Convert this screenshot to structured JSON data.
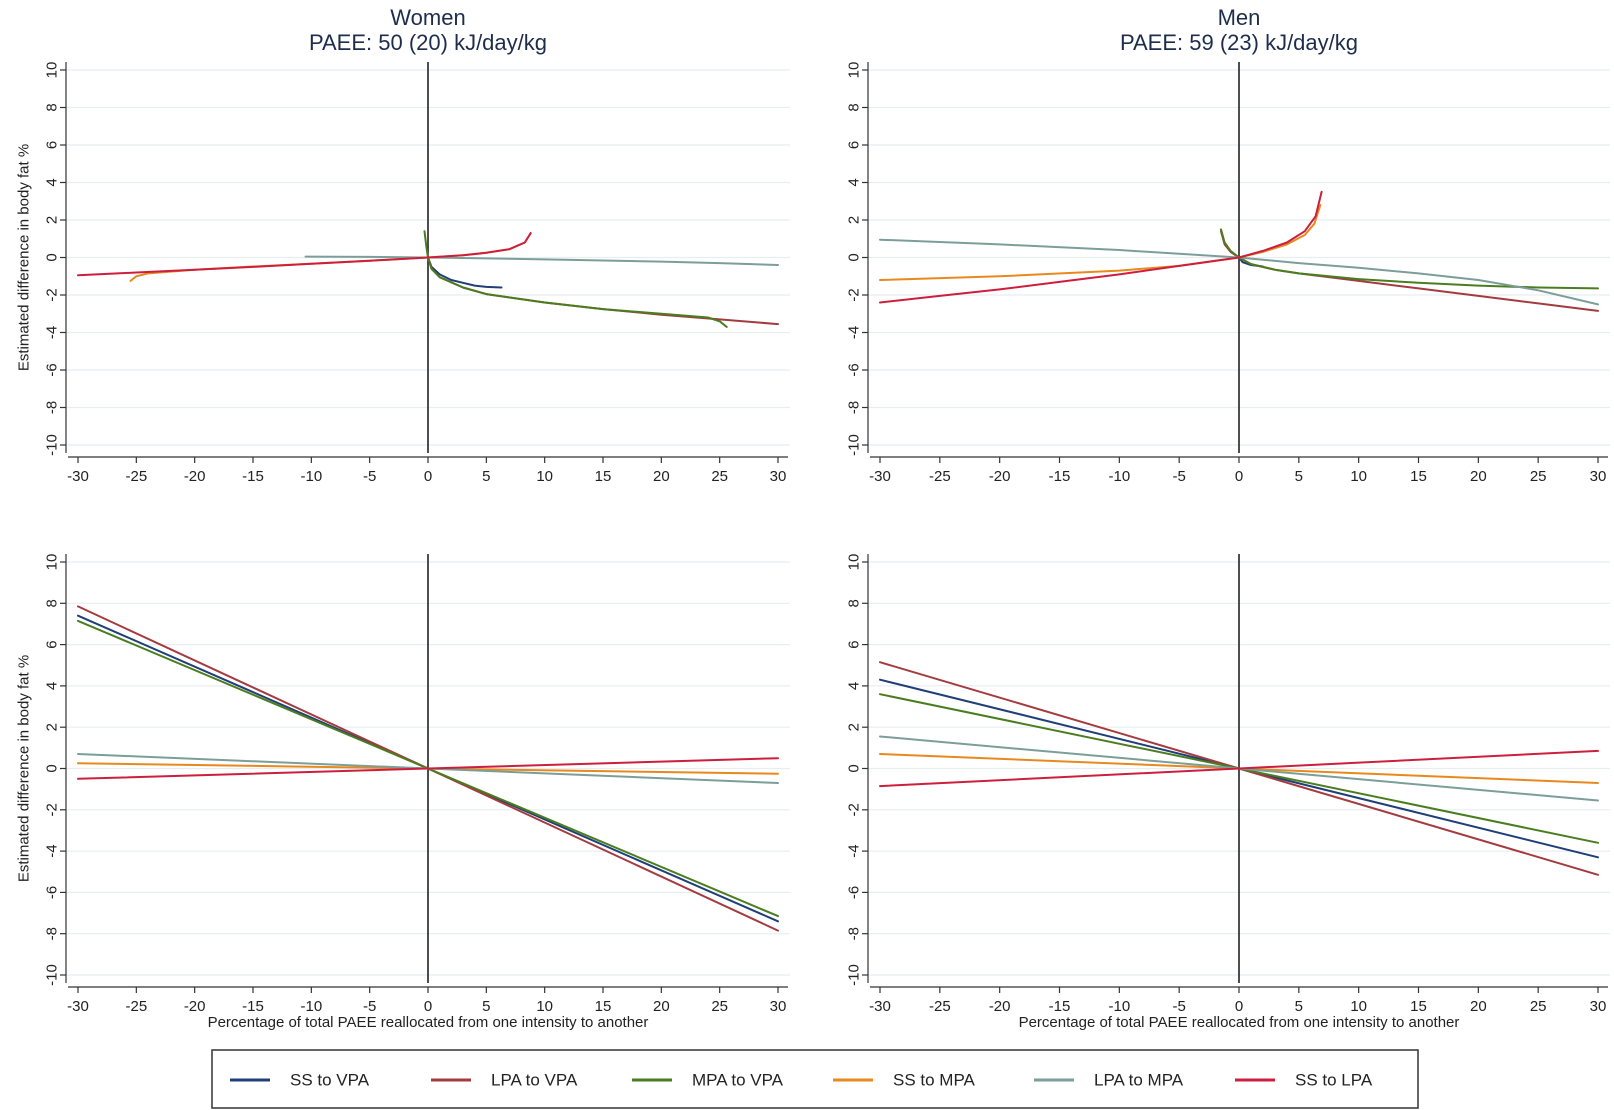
{
  "chart_data": [
    {
      "type": "line",
      "title": [
        "Women",
        "PAEE: 50 (20) kJ/day/kg"
      ],
      "ylabel": "Estimated difference in body fat %",
      "xlabel": "",
      "xlim": [
        -30,
        30
      ],
      "ylim": [
        -10,
        10
      ],
      "xticks": [
        "-30",
        "-25",
        "-20",
        "-15",
        "-10",
        "-5",
        "0",
        "5",
        "10",
        "15",
        "20",
        "25",
        "30"
      ],
      "yticks": [
        "-10",
        "-8",
        "-6",
        "-4",
        "-2",
        "0",
        "2",
        "4",
        "6",
        "8",
        "10"
      ],
      "series": [
        {
          "name": "SS to VPA",
          "color": "#1f3f78",
          "points": [
            [
              0,
              0
            ],
            [
              0.3,
              -0.5
            ],
            [
              1,
              -0.9
            ],
            [
              2,
              -1.2
            ],
            [
              3,
              -1.35
            ],
            [
              4,
              -1.5
            ],
            [
              5,
              -1.57
            ],
            [
              6.3,
              -1.6
            ]
          ]
        },
        {
          "name": "LPA to VPA",
          "color": "#a43b3f",
          "points": [
            [
              0,
              0
            ],
            [
              0.3,
              -0.6
            ],
            [
              1,
              -1.05
            ],
            [
              3,
              -1.6
            ],
            [
              5,
              -1.95
            ],
            [
              10,
              -2.4
            ],
            [
              15,
              -2.75
            ],
            [
              20,
              -3.05
            ],
            [
              25,
              -3.3
            ],
            [
              30,
              -3.55
            ]
          ]
        },
        {
          "name": "MPA to VPA",
          "color": "#4a7d1f",
          "points": [
            [
              -0.3,
              1.4
            ],
            [
              -0.15,
              0.6
            ],
            [
              0,
              0
            ],
            [
              0.3,
              -0.6
            ],
            [
              1,
              -1.05
            ],
            [
              3,
              -1.6
            ],
            [
              5,
              -1.95
            ],
            [
              10,
              -2.4
            ],
            [
              15,
              -2.75
            ],
            [
              20,
              -3.0
            ],
            [
              24,
              -3.2
            ],
            [
              25,
              -3.4
            ],
            [
              25.6,
              -3.7
            ]
          ]
        },
        {
          "name": "SS to MPA",
          "color": "#e8891e",
          "points": [
            [
              -25.5,
              -1.25
            ],
            [
              -25,
              -1.0
            ],
            [
              -24,
              -0.85
            ],
            [
              -20,
              -0.65
            ],
            [
              -15,
              -0.48
            ],
            [
              -10,
              -0.33
            ],
            [
              -5,
              -0.17
            ],
            [
              0,
              0
            ],
            [
              3,
              0.12
            ],
            [
              5,
              0.25
            ],
            [
              7,
              0.45
            ],
            [
              8.3,
              0.8
            ],
            [
              8.8,
              1.3
            ]
          ]
        },
        {
          "name": "LPA to MPA",
          "color": "#7c9e98",
          "points": [
            [
              -10.5,
              0.05
            ],
            [
              -5,
              0.03
            ],
            [
              0,
              0
            ],
            [
              5,
              -0.05
            ],
            [
              10,
              -0.1
            ],
            [
              15,
              -0.16
            ],
            [
              20,
              -0.22
            ],
            [
              25,
              -0.3
            ],
            [
              30,
              -0.4
            ]
          ]
        },
        {
          "name": "SS to LPA",
          "color": "#cc1f3d",
          "points": [
            [
              -30,
              -0.95
            ],
            [
              -25,
              -0.8
            ],
            [
              -20,
              -0.65
            ],
            [
              -15,
              -0.5
            ],
            [
              -10,
              -0.33
            ],
            [
              -5,
              -0.17
            ],
            [
              0,
              0
            ],
            [
              3,
              0.12
            ],
            [
              5,
              0.25
            ],
            [
              7,
              0.45
            ],
            [
              8.3,
              0.8
            ],
            [
              8.8,
              1.3
            ]
          ]
        }
      ]
    },
    {
      "type": "line",
      "title": [
        "Men",
        "PAEE: 59 (23) kJ/day/kg"
      ],
      "ylabel": "",
      "xlabel": "",
      "xlim": [
        -30,
        30
      ],
      "ylim": [
        -10,
        10
      ],
      "xticks": [
        "-30",
        "-25",
        "-20",
        "-15",
        "-10",
        "-5",
        "0",
        "5",
        "10",
        "15",
        "20",
        "25",
        "30"
      ],
      "yticks": [
        "-10",
        "-8",
        "-6",
        "-4",
        "-2",
        "0",
        "2",
        "4",
        "6",
        "8",
        "10"
      ],
      "series": [
        {
          "name": "SS to VPA",
          "color": "#1f3f78",
          "points": [
            [
              0,
              0
            ],
            [
              0.3,
              -0.25
            ],
            [
              1,
              -0.4
            ],
            [
              2,
              -0.48
            ]
          ]
        },
        {
          "name": "LPA to VPA",
          "color": "#a43b3f",
          "points": [
            [
              -1.5,
              1.4
            ],
            [
              -1.2,
              0.7
            ],
            [
              -0.7,
              0.3
            ],
            [
              0,
              0
            ],
            [
              1,
              -0.35
            ],
            [
              3,
              -0.65
            ],
            [
              5,
              -0.85
            ],
            [
              10,
              -1.25
            ],
            [
              15,
              -1.65
            ],
            [
              20,
              -2.05
            ],
            [
              25,
              -2.45
            ],
            [
              30,
              -2.85
            ]
          ]
        },
        {
          "name": "MPA to VPA",
          "color": "#4a7d1f",
          "points": [
            [
              -1.5,
              1.5
            ],
            [
              -1.2,
              0.8
            ],
            [
              -0.7,
              0.35
            ],
            [
              0,
              0
            ],
            [
              1,
              -0.35
            ],
            [
              3,
              -0.65
            ],
            [
              5,
              -0.85
            ],
            [
              10,
              -1.15
            ],
            [
              15,
              -1.35
            ],
            [
              20,
              -1.5
            ],
            [
              25,
              -1.6
            ],
            [
              30,
              -1.65
            ]
          ]
        },
        {
          "name": "SS to MPA",
          "color": "#e8891e",
          "points": [
            [
              -30,
              -1.2
            ],
            [
              -20,
              -1.0
            ],
            [
              -10,
              -0.7
            ],
            [
              -5,
              -0.45
            ],
            [
              0,
              0
            ],
            [
              2,
              0.3
            ],
            [
              4,
              0.7
            ],
            [
              5.5,
              1.2
            ],
            [
              6.3,
              1.8
            ],
            [
              6.8,
              2.8
            ]
          ]
        },
        {
          "name": "LPA to MPA",
          "color": "#7c9e98",
          "points": [
            [
              -30,
              0.95
            ],
            [
              -20,
              0.7
            ],
            [
              -10,
              0.4
            ],
            [
              -5,
              0.2
            ],
            [
              0,
              0
            ],
            [
              5,
              -0.3
            ],
            [
              10,
              -0.55
            ],
            [
              15,
              -0.85
            ],
            [
              20,
              -1.2
            ],
            [
              25,
              -1.75
            ],
            [
              30,
              -2.5
            ]
          ]
        },
        {
          "name": "SS to LPA",
          "color": "#cc1f3d",
          "points": [
            [
              -30,
              -2.4
            ],
            [
              -25,
              -2.05
            ],
            [
              -20,
              -1.7
            ],
            [
              -15,
              -1.3
            ],
            [
              -10,
              -0.9
            ],
            [
              -5,
              -0.45
            ],
            [
              0,
              0
            ],
            [
              2,
              0.35
            ],
            [
              4,
              0.8
            ],
            [
              5.5,
              1.4
            ],
            [
              6.4,
              2.2
            ],
            [
              6.9,
              3.5
            ]
          ]
        }
      ]
    },
    {
      "type": "line",
      "title": [],
      "ylabel": "Estimated difference in body fat %",
      "xlabel": "Percentage of total PAEE reallocated from one intensity to another",
      "xlim": [
        -30,
        30
      ],
      "ylim": [
        -10,
        10
      ],
      "xticks": [
        "-30",
        "-25",
        "-20",
        "-15",
        "-10",
        "-5",
        "0",
        "5",
        "10",
        "15",
        "20",
        "25",
        "30"
      ],
      "yticks": [
        "-10",
        "-8",
        "-6",
        "-4",
        "-2",
        "0",
        "2",
        "4",
        "6",
        "8",
        "10"
      ],
      "series": [
        {
          "name": "SS to VPA",
          "color": "#1f3f78",
          "points": [
            [
              -30,
              7.4
            ],
            [
              0,
              0
            ],
            [
              30,
              -7.4
            ]
          ]
        },
        {
          "name": "LPA to VPA",
          "color": "#a43b3f",
          "points": [
            [
              -30,
              7.85
            ],
            [
              0,
              0
            ],
            [
              30,
              -7.85
            ]
          ]
        },
        {
          "name": "MPA to VPA",
          "color": "#4a7d1f",
          "points": [
            [
              -30,
              7.15
            ],
            [
              0,
              0
            ],
            [
              30,
              -7.15
            ]
          ]
        },
        {
          "name": "SS to MPA",
          "color": "#e8891e",
          "points": [
            [
              -30,
              0.25
            ],
            [
              0,
              0
            ],
            [
              30,
              -0.25
            ]
          ]
        },
        {
          "name": "LPA to MPA",
          "color": "#7c9e98",
          "points": [
            [
              -30,
              0.7
            ],
            [
              0,
              0
            ],
            [
              30,
              -0.7
            ]
          ]
        },
        {
          "name": "SS to LPA",
          "color": "#cc1f3d",
          "points": [
            [
              -30,
              -0.5
            ],
            [
              0,
              0
            ],
            [
              30,
              0.5
            ]
          ]
        }
      ]
    },
    {
      "type": "line",
      "title": [],
      "ylabel": "",
      "xlabel": "Percentage of total PAEE reallocated from one intensity to another",
      "xlim": [
        -30,
        30
      ],
      "ylim": [
        -10,
        10
      ],
      "xticks": [
        "-30",
        "-25",
        "-20",
        "-15",
        "-10",
        "-5",
        "0",
        "5",
        "10",
        "15",
        "20",
        "25",
        "30"
      ],
      "yticks": [
        "-10",
        "-8",
        "-6",
        "-4",
        "-2",
        "0",
        "2",
        "4",
        "6",
        "8",
        "10"
      ],
      "series": [
        {
          "name": "SS to VPA",
          "color": "#1f3f78",
          "points": [
            [
              -30,
              4.3
            ],
            [
              0,
              0
            ],
            [
              30,
              -4.3
            ]
          ]
        },
        {
          "name": "LPA to VPA",
          "color": "#a43b3f",
          "points": [
            [
              -30,
              5.15
            ],
            [
              0,
              0
            ],
            [
              30,
              -5.15
            ]
          ]
        },
        {
          "name": "MPA to VPA",
          "color": "#4a7d1f",
          "points": [
            [
              -30,
              3.6
            ],
            [
              0,
              0
            ],
            [
              30,
              -3.6
            ]
          ]
        },
        {
          "name": "SS to MPA",
          "color": "#e8891e",
          "points": [
            [
              -30,
              0.7
            ],
            [
              0,
              0
            ],
            [
              30,
              -0.7
            ]
          ]
        },
        {
          "name": "LPA to MPA",
          "color": "#7c9e98",
          "points": [
            [
              -30,
              1.55
            ],
            [
              0,
              0
            ],
            [
              30,
              -1.55
            ]
          ]
        },
        {
          "name": "SS to LPA",
          "color": "#cc1f3d",
          "points": [
            [
              -30,
              -0.85
            ],
            [
              0,
              0
            ],
            [
              30,
              0.85
            ]
          ]
        }
      ]
    }
  ],
  "legend": {
    "placement": "bottom",
    "items": [
      {
        "label": "SS to VPA",
        "color": "#1f3f78"
      },
      {
        "label": "LPA to VPA",
        "color": "#a43b3f"
      },
      {
        "label": "MPA to VPA",
        "color": "#4a7d1f"
      },
      {
        "label": "SS to MPA",
        "color": "#e8891e"
      },
      {
        "label": "LPA to MPA",
        "color": "#7c9e98"
      },
      {
        "label": "SS to LPA",
        "color": "#cc1f3d"
      }
    ]
  }
}
